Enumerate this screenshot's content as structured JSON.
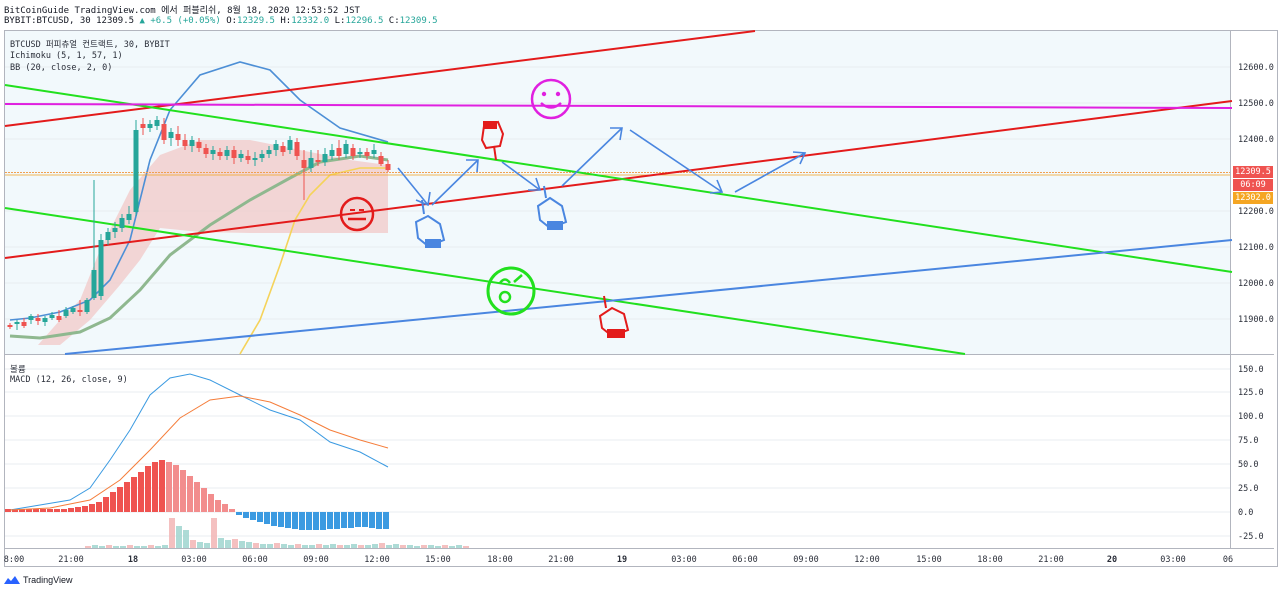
{
  "header": {
    "line1": "BitCoinGuide TradingView.com 에서 퍼블리쉬, 8월 18, 2020 12:53:52 JST",
    "symbol": "BYBIT:BTCUSD, 30",
    "last": "12309.5",
    "change": "▲ +6.5 (+0.05%)",
    "o_label": "O:",
    "o_val": "12329.5",
    "h_label": "H:",
    "h_val": "12332.0",
    "l_label": "L:",
    "l_val": "12296.5",
    "c_label": "C:",
    "c_val": "12309.5"
  },
  "legend": {
    "main": "BTCUSD 퍼피츄얼 컨트랙트, 30, BYBIT",
    "ichimoku": "Ichimoku (5, 1, 57, 1)",
    "bb": "BB (20, close, 2, 0)",
    "volume": "볼륨",
    "macd": "MACD (12, 26, close, 9)"
  },
  "price_axis": [
    "12600.0",
    "12500.0",
    "12400.0",
    "12200.0",
    "12100.0",
    "12000.0",
    "11900.0"
  ],
  "macd_axis": [
    "150.0",
    "125.0",
    "100.0",
    "75.0",
    "50.0",
    "25.0",
    "0.0",
    "-25.0"
  ],
  "time_axis": [
    "8:00",
    "21:00",
    "18",
    "03:00",
    "06:00",
    "09:00",
    "12:00",
    "15:00",
    "18:00",
    "21:00",
    "19",
    "03:00",
    "06:00",
    "09:00",
    "12:00",
    "15:00",
    "18:00",
    "21:00",
    "20",
    "03:00",
    "06"
  ],
  "price_tags": {
    "last": "12309.5",
    "countdown": "06:09",
    "level": "12302.0"
  },
  "colors": {
    "up": "#26a69a",
    "down": "#ef5350",
    "red_line": "#e31b1b",
    "green_line": "#22e01e",
    "blue_line": "#4a86e0",
    "magenta": "#e020e0",
    "orange_tag": "#f5a623",
    "last_tag": "#ef5350"
  },
  "icons": [
    "smiley-face-icon",
    "neutral-face-icon",
    "dizzy-face-icon",
    "pointing-hand-icon"
  ],
  "footer": {
    "brand": "TradingView"
  }
}
